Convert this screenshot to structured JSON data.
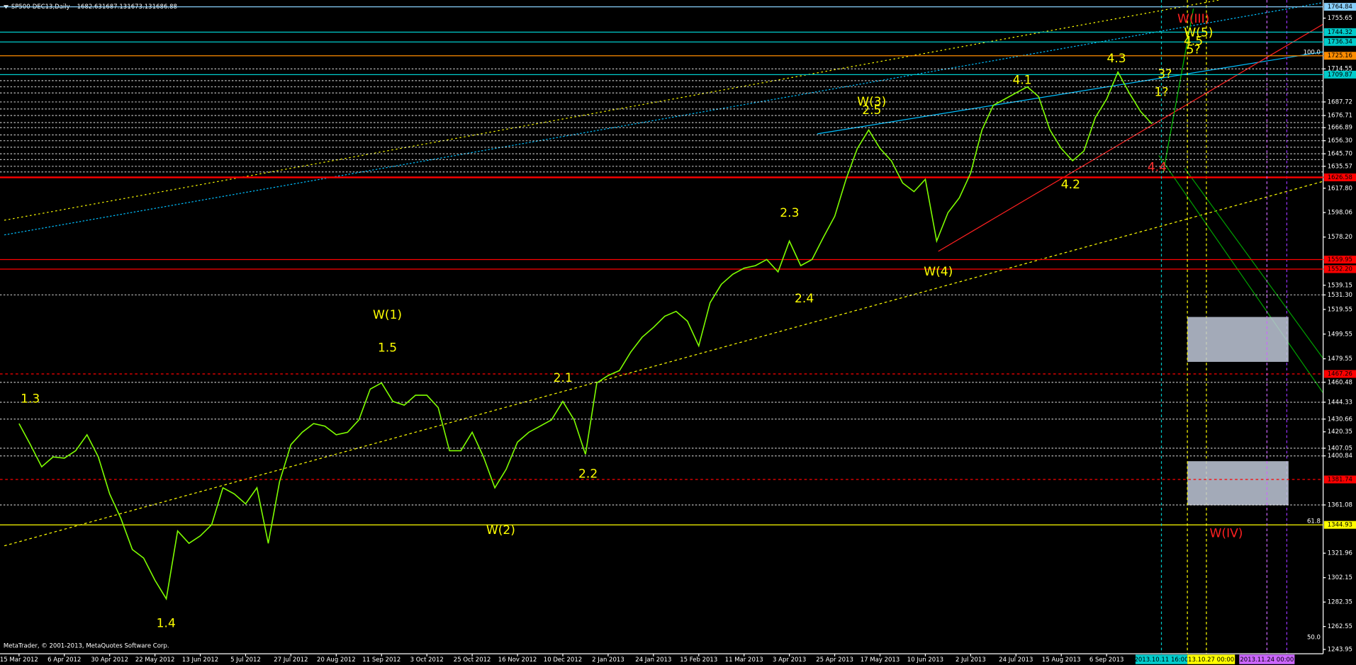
{
  "header": {
    "symbol": "SP500-DEC13,Daily",
    "ohlc": [
      1682.63,
      1687.13,
      1673.13,
      1686.88
    ]
  },
  "footer": "MetaTrader, © 2001-2013, MetaQuotes Software Corp.",
  "chart_data": {
    "type": "line",
    "color": "#7fff00",
    "categories": [
      "15 Mar 2012",
      null,
      null,
      null,
      "6 Apr 2012",
      null,
      null,
      null,
      "30 Apr 2012",
      null,
      null,
      null,
      "22 May 2012",
      null,
      null,
      null,
      "13 Jun 2012",
      null,
      null,
      null,
      "5 Jul 2012",
      null,
      null,
      null,
      "27 Jul 2012",
      null,
      null,
      null,
      "20 Aug 2012",
      null,
      null,
      null,
      "11 Sep 2012",
      null,
      null,
      null,
      "3 Oct 2012",
      null,
      null,
      null,
      "25 Oct 2012",
      null,
      null,
      null,
      "16 Nov 2012",
      null,
      null,
      null,
      "10 Dec 2012",
      null,
      null,
      null,
      "2 Jan 2013",
      null,
      null,
      null,
      "24 Jan 2013",
      null,
      null,
      null,
      "15 Feb 2013",
      null,
      null,
      null,
      "11 Mar 2013",
      null,
      null,
      null,
      "3 Apr 2013",
      null,
      null,
      null,
      "25 Apr 2013",
      null,
      null,
      null,
      "17 May 2013",
      null,
      null,
      null,
      "10 Jun 2013",
      null,
      null,
      null,
      "2 Jul 2013",
      null,
      null,
      null,
      "24 Jul 2013",
      null,
      null,
      null,
      "15 Aug 2013",
      null,
      null,
      null,
      "6 Sep 2013",
      null,
      null,
      null,
      null
    ],
    "values": [
      1427,
      1410,
      1392,
      1400,
      1399,
      1405,
      1418,
      1400,
      1370,
      1350,
      1325,
      1318,
      1300,
      1285,
      1340,
      1330,
      1336,
      1345,
      1375,
      1370,
      1362,
      1375,
      1330,
      1380,
      1410,
      1420,
      1427,
      1425,
      1418,
      1420,
      1430,
      1455,
      1460,
      1445,
      1442,
      1450,
      1450,
      1440,
      1405,
      1405,
      1420,
      1400,
      1375,
      1390,
      1412,
      1420,
      1425,
      1430,
      1445,
      1430,
      1402,
      1460,
      1466,
      1470,
      1485,
      1497,
      1505,
      1514,
      1518,
      1510,
      1490,
      1525,
      1540,
      1548,
      1553,
      1555,
      1560,
      1550,
      1575,
      1555,
      1560,
      1578,
      1595,
      1625,
      1650,
      1665,
      1650,
      1640,
      1622,
      1615,
      1625,
      1575,
      1598,
      1610,
      1630,
      1665,
      1685,
      1690,
      1695,
      1700,
      1692,
      1665,
      1650,
      1640,
      1648,
      1675,
      1690,
      1712,
      1695,
      1680,
      1670
    ],
    "ylim": [
      1240.45,
      1770.35
    ],
    "yticks": [
      1755.65,
      1714.55,
      1687.72,
      1676.71,
      1666.89,
      {
        "value": 1656.3,
        "label": "1656.30"
      },
      {
        "value": 1645.7,
        "label": "1645.70"
      },
      1635.57,
      {
        "value": 1617.8,
        "label": "1617.80"
      },
      1598.06,
      {
        "value": 1578.2,
        "label": "1578.20"
      },
      1539.15,
      {
        "value": 1531.3,
        "label": "1531.30"
      },
      1519.55,
      1499.55,
      1479.55,
      1460.48,
      1444.33,
      1430.66,
      1420.35,
      1407.05,
      1400.84,
      1361.08,
      1321.96,
      1302.15,
      1282.35,
      1262.55,
      1243.95
    ],
    "dotted_levels": [
      1531.3,
      1460.48,
      1444.33,
      1430.66,
      1407.05,
      1400.84,
      1361.08,
      1714.55,
      1705,
      1700,
      1695,
      1687.72,
      1682,
      1676.71,
      1671,
      1666.89,
      1661,
      1656.3,
      1651,
      1645.7,
      1641,
      1635.57,
      1631
    ],
    "levels": [
      {
        "value": 1764.84,
        "label": "1764.84",
        "color": "#87cefa",
        "width": 1
      },
      {
        "value": 1744.32,
        "label": "1744.32",
        "color": "#00cccc",
        "width": 1
      },
      {
        "value": 1736.34,
        "label": "1736.34",
        "color": "#00cccc",
        "width": 1
      },
      {
        "value": 1725.16,
        "label": "1725.16",
        "color": "#ff8c00",
        "width": 1
      },
      {
        "value": 1709.87,
        "label": "1709.87",
        "color": "#00cccc",
        "width": 1
      },
      {
        "value": 1626.58,
        "label": "1626.58",
        "color": "#ff0000",
        "width": 2
      },
      {
        "value": 1559.95,
        "label": "1559.95",
        "color": "#ff0000",
        "width": 1
      },
      {
        "value": 1552.2,
        "label": "1552.20",
        "color": "#ff0000",
        "width": 1
      },
      {
        "value": 1467.26,
        "label": "1467.26",
        "color": "#ff0000",
        "width": 1
      },
      {
        "value": 1381.74,
        "label": "1381.74",
        "color": "#ff0000",
        "width": 1
      },
      {
        "value": 1344.93,
        "label": "1344.93",
        "color": "#ffff00",
        "width": 1
      }
    ],
    "fib_labels": [
      {
        "value": 1725.16,
        "label": "100.0"
      },
      {
        "value": 1344.93,
        "label": "61.8"
      },
      {
        "value": 1251,
        "label": "50.0"
      }
    ],
    "vlines": [
      {
        "label": "2013.10.11 16:00",
        "color": "#00cccc"
      },
      {
        "label": "13.10.27 00:00",
        "color": "#ffff00"
      },
      {
        "label": "2013.11.24 00:00",
        "color": "#cc66ff"
      }
    ],
    "annotations": [
      {
        "text": "1.3",
        "color": "#ffff00"
      },
      {
        "text": "1.4",
        "color": "#ffff00"
      },
      {
        "text": "W(1)",
        "color": "#ffff00"
      },
      {
        "text": "1.5",
        "color": "#ffff00"
      },
      {
        "text": "W(2)",
        "color": "#ffff00"
      },
      {
        "text": "2.1",
        "color": "#ffff00"
      },
      {
        "text": "2.2",
        "color": "#ffff00"
      },
      {
        "text": "2.3",
        "color": "#ffff00"
      },
      {
        "text": "2.4",
        "color": "#ffff00"
      },
      {
        "text": "W(3)",
        "color": "#ffff00"
      },
      {
        "text": "2.5",
        "color": "#ffff00"
      },
      {
        "text": "W(4)",
        "color": "#ffff00"
      },
      {
        "text": "4.1",
        "color": "#ffff00"
      },
      {
        "text": "4.2",
        "color": "#ffff00"
      },
      {
        "text": "4.3",
        "color": "#ffff00"
      },
      {
        "text": "4.4",
        "color": "#ff3030"
      },
      {
        "text": "W(III)",
        "color": "#ff2020"
      },
      {
        "text": "W(5)",
        "color": "#ffff00"
      },
      {
        "text": "4.5",
        "color": "#ffff00"
      },
      {
        "text": "5?",
        "color": "#ffff00"
      },
      {
        "text": "3?",
        "color": "#ffff00"
      },
      {
        "text": "1?",
        "color": "#ffff00"
      },
      {
        "text": "W(IV)",
        "color": "#ff2020"
      }
    ]
  }
}
